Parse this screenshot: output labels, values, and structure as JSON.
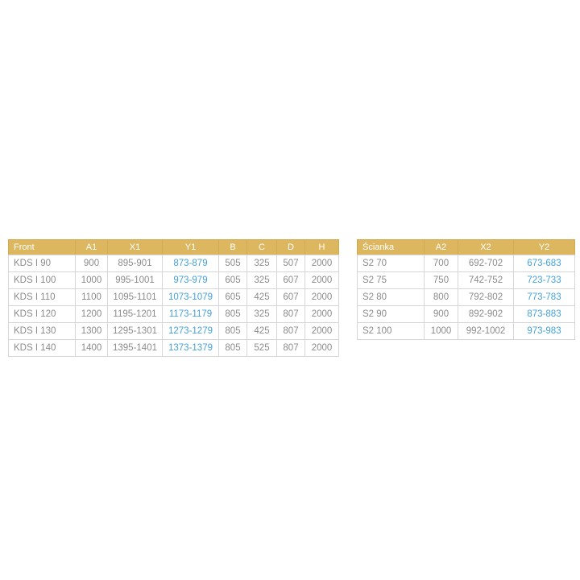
{
  "colors": {
    "header_bg": "#dcb75f",
    "header_text": "#ffffff",
    "body_text": "#8b8b8b",
    "accent_blue": "#45a1db",
    "border": "#d6d6d6",
    "background": "#ffffff"
  },
  "tables": [
    {
      "name": "front-dimensions-table",
      "headers": [
        "Front",
        "A1",
        "X1",
        "Y1",
        "B",
        "C",
        "D",
        "H"
      ],
      "accent_col": 3,
      "rows": [
        [
          "KDS I 90",
          "900",
          "895-901",
          "873-879",
          "505",
          "325",
          "507",
          "2000"
        ],
        [
          "KDS I 100",
          "1000",
          "995-1001",
          "973-979",
          "605",
          "325",
          "607",
          "2000"
        ],
        [
          "KDS I 110",
          "1100",
          "1095-1101",
          "1073-1079",
          "605",
          "425",
          "607",
          "2000"
        ],
        [
          "KDS I 120",
          "1200",
          "1195-1201",
          "1173-1179",
          "805",
          "325",
          "807",
          "2000"
        ],
        [
          "KDS I 130",
          "1300",
          "1295-1301",
          "1273-1279",
          "805",
          "425",
          "807",
          "2000"
        ],
        [
          "KDS I 140",
          "1400",
          "1395-1401",
          "1373-1379",
          "805",
          "525",
          "807",
          "2000"
        ]
      ]
    },
    {
      "name": "scianka-dimensions-table",
      "headers": [
        "Ścianka",
        "A2",
        "X2",
        "Y2"
      ],
      "accent_col": 3,
      "rows": [
        [
          "S2 70",
          "700",
          "692-702",
          "673-683"
        ],
        [
          "S2 75",
          "750",
          "742-752",
          "723-733"
        ],
        [
          "S2 80",
          "800",
          "792-802",
          "773-783"
        ],
        [
          "S2 90",
          "900",
          "892-902",
          "873-883"
        ],
        [
          "S2 100",
          "1000",
          "992-1002",
          "973-983"
        ]
      ]
    }
  ]
}
